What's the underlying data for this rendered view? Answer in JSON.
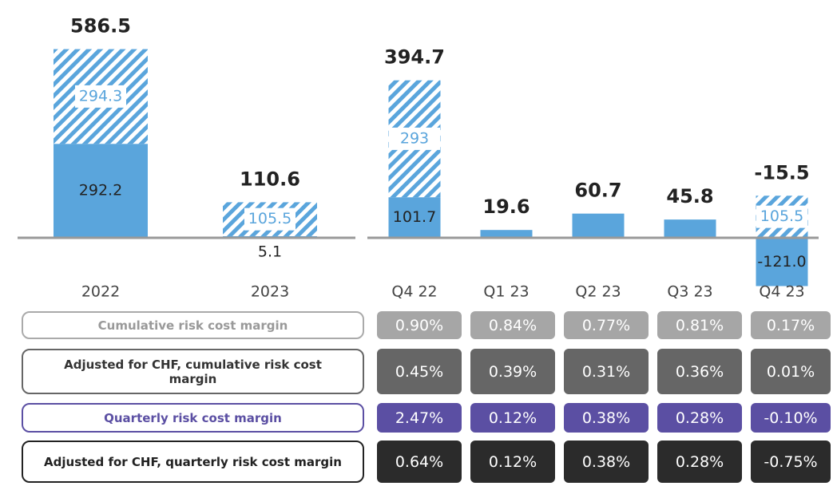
{
  "chart_data": [
    {
      "type": "stacked_bar",
      "categories": [
        "2022",
        "2023"
      ],
      "series": [
        {
          "color": "#5aa5dc",
          "values": [
            292.2,
            5.1
          ]
        },
        {
          "color": "#5aa5dc",
          "pattern": "hatch",
          "values": [
            294.3,
            105.5
          ]
        }
      ],
      "totals": [
        586.5,
        110.6
      ],
      "ylim": [
        0,
        640
      ]
    },
    {
      "type": "stacked_bar",
      "categories": [
        "Q4 22",
        "Q1 23",
        "Q2 23",
        "Q3 23",
        "Q4 23"
      ],
      "series": [
        {
          "color": "#5aa5dc",
          "values": [
            101.7,
            19.6,
            60.7,
            45.8,
            -121.0
          ],
          "value_labels": [
            "101.7",
            "19.6",
            "60.7",
            "45.8",
            "-121.0"
          ]
        },
        {
          "color": "#5aa5dc",
          "pattern": "hatch",
          "values": [
            293.0,
            null,
            null,
            null,
            105.5
          ]
        }
      ],
      "totals": [
        394.7,
        19.6,
        60.7,
        45.8,
        -15.5
      ],
      "ylim": [
        -130,
        470
      ]
    }
  ],
  "table": {
    "rows": [
      {
        "label": "Cumulative risk cost margin",
        "values": [
          "0.90%",
          "0.84%",
          "0.77%",
          "0.81%",
          "0.17%"
        ]
      },
      {
        "label": "Adjusted for CHF, cumulative risk cost margin",
        "values": [
          "0.45%",
          "0.39%",
          "0.31%",
          "0.36%",
          "0.01%"
        ]
      },
      {
        "label": "Quarterly risk cost margin",
        "values": [
          "2.47%",
          "0.12%",
          "0.38%",
          "0.28%",
          "-0.10%"
        ]
      },
      {
        "label": "Adjusted for CHF, quarterly risk cost margin",
        "values": [
          "0.64%",
          "0.12%",
          "0.38%",
          "0.28%",
          "-0.75%"
        ]
      }
    ]
  }
}
